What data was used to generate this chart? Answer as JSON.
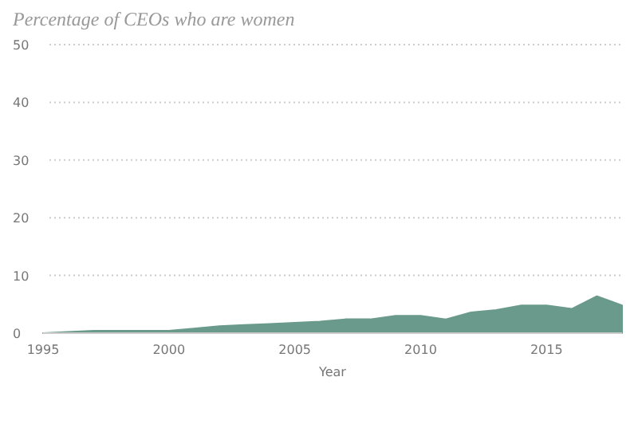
{
  "chart_data": {
    "type": "area",
    "title": "Percentage of CEOs who are women",
    "xlabel": "Year",
    "x": [
      1995,
      1996,
      1997,
      1998,
      1999,
      2000,
      2001,
      2002,
      2003,
      2004,
      2005,
      2006,
      2007,
      2008,
      2009,
      2010,
      2011,
      2012,
      2013,
      2014,
      2015,
      2016,
      2017,
      2018
    ],
    "series": [
      {
        "color": "#6a9a8b",
        "values": [
          0,
          0.2,
          0.4,
          0.4,
          0.4,
          0.4,
          0.8,
          1.2,
          1.4,
          1.6,
          1.8,
          2.0,
          2.4,
          2.4,
          3.0,
          3.0,
          2.4,
          3.6,
          4.0,
          4.8,
          4.8,
          4.2,
          6.4,
          4.8
        ]
      }
    ],
    "xlim": [
      1995,
      2018
    ],
    "xticks": [
      1995,
      2000,
      2005,
      2010,
      2015
    ],
    "ylim": [
      0,
      50
    ],
    "yticks": [
      0,
      10,
      20,
      30,
      40,
      50
    ],
    "grid": "y"
  }
}
